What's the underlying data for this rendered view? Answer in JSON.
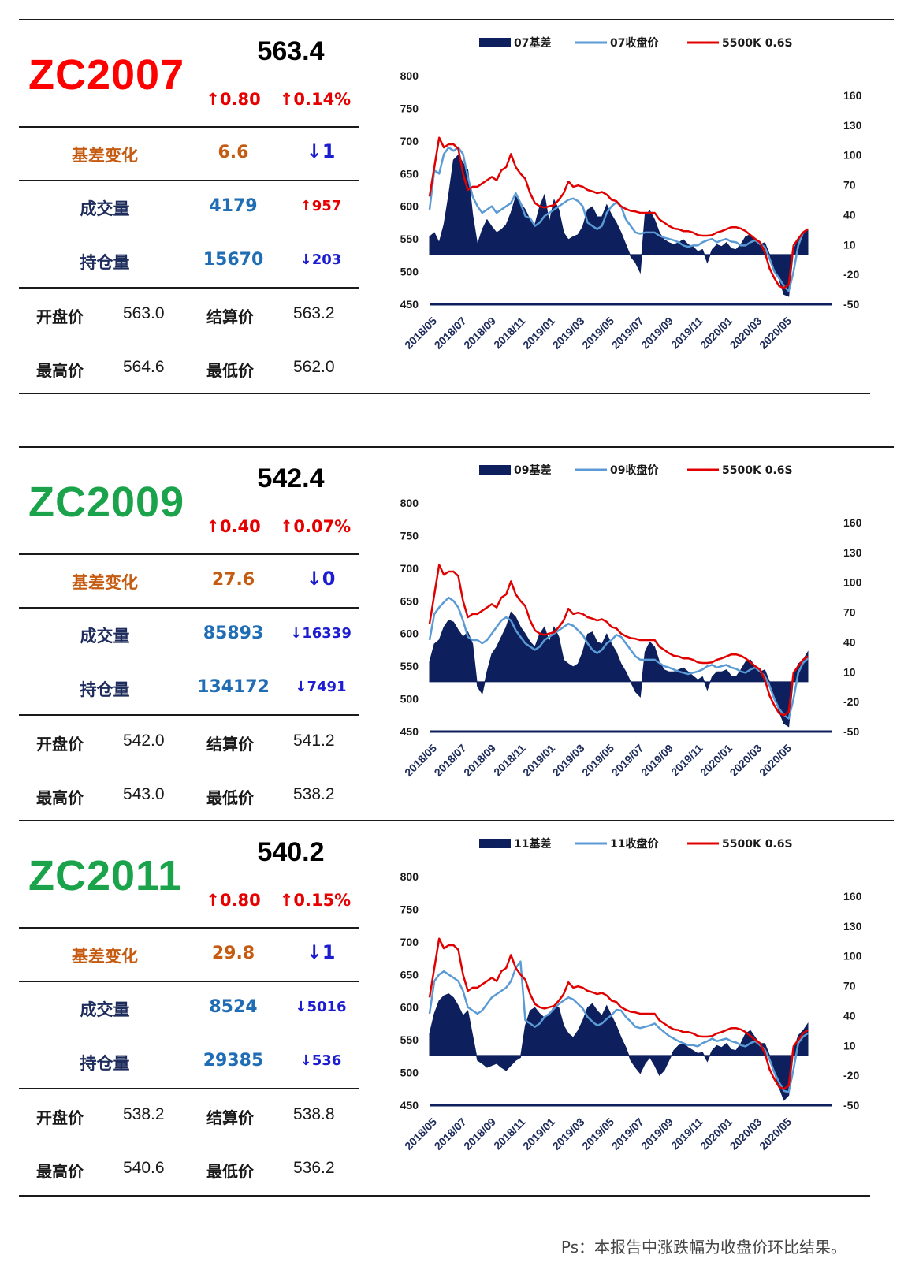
{
  "footer_note": "Ps：本报告中涨跌幅为收盘价环比结果。",
  "panels": [
    {
      "code": "ZC2007",
      "code_color": "#ff0000",
      "price": "563.4",
      "change": "↑0.80",
      "change_pct": "↑0.14%",
      "basis_label": "基差变化",
      "basis_value": "6.6",
      "basis_delta": "↓1",
      "volume_label": "成交量",
      "volume_value": "4179",
      "volume_delta": "↑957",
      "oi_label": "持仓量",
      "oi_value": "15670",
      "oi_delta": "↓203",
      "open_label": "开盘价",
      "open_value": "563.0",
      "settle_label": "结算价",
      "settle_value": "563.2",
      "high_label": "最高价",
      "high_value": "564.6",
      "low_label": "最低价",
      "low_value": "562.0",
      "volume_delta_up": true
    },
    {
      "code": "ZC2009",
      "code_color": "#1aa34a",
      "price": "542.4",
      "change": "↑0.40",
      "change_pct": "↑0.07%",
      "basis_label": "基差变化",
      "basis_value": "27.6",
      "basis_delta": "↓0",
      "volume_label": "成交量",
      "volume_value": "85893",
      "volume_delta": "↓16339",
      "oi_label": "持仓量",
      "oi_value": "134172",
      "oi_delta": "↓7491",
      "open_label": "开盘价",
      "open_value": "542.0",
      "settle_label": "结算价",
      "settle_value": "541.2",
      "high_label": "最高价",
      "high_value": "543.0",
      "low_label": "最低价",
      "low_value": "538.2",
      "volume_delta_up": false
    },
    {
      "code": "ZC2011",
      "code_color": "#1aa34a",
      "price": "540.2",
      "change": "↑0.80",
      "change_pct": "↑0.15%",
      "basis_label": "基差变化",
      "basis_value": "29.8",
      "basis_delta": "↓1",
      "volume_label": "成交量",
      "volume_value": "8524",
      "volume_delta": "↓5016",
      "oi_label": "持仓量",
      "oi_value": "29385",
      "oi_delta": "↓536",
      "open_label": "开盘价",
      "open_value": "538.2",
      "settle_label": "结算价",
      "settle_value": "538.8",
      "high_label": "最高价",
      "high_value": "540.6",
      "low_label": "最低价",
      "low_value": "536.2",
      "volume_delta_up": false
    }
  ],
  "chart_data": [
    {
      "type": "line",
      "legend": [
        "07基差",
        "07收盘价",
        "5500K 0.6S"
      ],
      "legend_placement": "top",
      "x_ticks": [
        "2018/05",
        "2018/07",
        "2018/09",
        "2018/11",
        "2019/01",
        "2019/03",
        "2019/05",
        "2019/07",
        "2019/09",
        "2019/11",
        "2020/01",
        "2020/03",
        "2020/05"
      ],
      "y_left": [
        800,
        750,
        700,
        650,
        600,
        550,
        500,
        450
      ],
      "y_right": [
        160,
        130,
        100,
        70,
        40,
        10,
        -20,
        -50
      ],
      "colors": {
        "basis": "#0d1f5c",
        "close": "#5b9bd5",
        "spot": "#e00000"
      },
      "series": [
        {
          "name": "07基差",
          "axis": "right",
          "values": [
            18,
            22,
            12,
            30,
            60,
            95,
            100,
            92,
            85,
            40,
            10,
            25,
            35,
            28,
            22,
            25,
            30,
            42,
            58,
            52,
            45,
            35,
            30,
            48,
            60,
            32,
            55,
            45,
            22,
            15,
            18,
            20,
            28,
            45,
            48,
            38,
            38,
            50,
            40,
            32,
            22,
            10,
            -2,
            -8,
            -18,
            40,
            44,
            35,
            22,
            15,
            12,
            10,
            12,
            15,
            10,
            8,
            3,
            5,
            -8,
            5,
            10,
            8,
            12,
            6,
            5,
            10,
            18,
            20,
            14,
            10,
            12,
            0,
            -15,
            -25,
            -40,
            -42,
            5,
            15,
            20,
            25
          ]
        },
        {
          "name": "07收盘价",
          "axis": "left",
          "values": [
            595,
            655,
            650,
            680,
            690,
            685,
            690,
            680,
            645,
            615,
            600,
            590,
            595,
            600,
            590,
            595,
            600,
            605,
            620,
            605,
            585,
            582,
            570,
            575,
            585,
            590,
            595,
            600,
            605,
            610,
            612,
            608,
            600,
            575,
            570,
            565,
            570,
            590,
            600,
            606,
            600,
            580,
            570,
            560,
            558,
            560,
            560,
            560,
            555,
            552,
            550,
            548,
            545,
            540,
            538,
            540,
            540,
            545,
            548,
            550,
            545,
            548,
            550,
            546,
            545,
            540,
            540,
            545,
            548,
            542,
            538,
            520,
            500,
            490,
            478,
            470,
            500,
            540,
            560,
            565
          ]
        },
        {
          "name": "5500K 0.6S",
          "axis": "left",
          "values": [
            615,
            660,
            705,
            690,
            695,
            695,
            688,
            650,
            625,
            630,
            630,
            635,
            640,
            645,
            640,
            655,
            660,
            680,
            660,
            650,
            642,
            620,
            605,
            600,
            598,
            600,
            602,
            610,
            620,
            638,
            630,
            632,
            630,
            625,
            623,
            620,
            622,
            618,
            610,
            608,
            600,
            596,
            593,
            592,
            590,
            590,
            590,
            590,
            580,
            575,
            570,
            566,
            565,
            562,
            562,
            560,
            556,
            555,
            555,
            556,
            560,
            562,
            565,
            568,
            568,
            566,
            562,
            556,
            550,
            545,
            530,
            505,
            490,
            478,
            475,
            480,
            540,
            550,
            560,
            565
          ]
        }
      ]
    },
    {
      "type": "line",
      "legend": [
        "09基差",
        "09收盘价",
        "5500K 0.6S"
      ],
      "legend_placement": "top",
      "x_ticks": [
        "2018/05",
        "2018/07",
        "2018/09",
        "2018/11",
        "2019/01",
        "2019/03",
        "2019/05",
        "2019/07",
        "2019/09",
        "2019/11",
        "2020/01",
        "2020/03",
        "2020/05"
      ],
      "y_left": [
        800,
        750,
        700,
        650,
        600,
        550,
        500,
        450
      ],
      "y_right": [
        160,
        130,
        100,
        70,
        40,
        10,
        -20,
        -50
      ],
      "colors": {
        "basis": "#0d1f5c",
        "close": "#5b9bd5",
        "spot": "#e00000"
      },
      "series": [
        {
          "name": "09基差",
          "axis": "right",
          "values": [
            20,
            38,
            42,
            55,
            62,
            60,
            52,
            45,
            50,
            38,
            -5,
            -12,
            10,
            28,
            35,
            45,
            55,
            70,
            65,
            55,
            48,
            40,
            35,
            48,
            55,
            40,
            55,
            45,
            22,
            18,
            15,
            18,
            30,
            48,
            50,
            40,
            38,
            48,
            38,
            30,
            18,
            10,
            0,
            -10,
            -15,
            30,
            40,
            35,
            20,
            12,
            10,
            10,
            12,
            14,
            10,
            6,
            2,
            5,
            -8,
            5,
            10,
            10,
            12,
            6,
            5,
            12,
            20,
            22,
            15,
            10,
            12,
            0,
            -15,
            -30,
            -42,
            -45,
            5,
            18,
            22,
            30
          ]
        },
        {
          "name": "09收盘价",
          "axis": "left",
          "values": [
            590,
            630,
            640,
            648,
            655,
            650,
            640,
            620,
            595,
            590,
            590,
            585,
            590,
            600,
            610,
            620,
            625,
            620,
            605,
            595,
            585,
            580,
            575,
            580,
            590,
            595,
            600,
            605,
            610,
            615,
            612,
            605,
            598,
            585,
            575,
            570,
            575,
            585,
            590,
            598,
            595,
            585,
            575,
            565,
            560,
            560,
            560,
            560,
            555,
            550,
            548,
            545,
            542,
            540,
            538,
            540,
            542,
            545,
            550,
            552,
            548,
            550,
            552,
            548,
            546,
            542,
            540,
            545,
            548,
            542,
            535,
            520,
            500,
            485,
            475,
            470,
            500,
            540,
            555,
            562
          ]
        },
        {
          "name": "5500K 0.6S",
          "axis": "left",
          "values": [
            615,
            660,
            705,
            690,
            695,
            695,
            688,
            650,
            625,
            630,
            630,
            635,
            640,
            645,
            640,
            655,
            660,
            680,
            660,
            650,
            642,
            620,
            605,
            600,
            598,
            600,
            602,
            610,
            620,
            638,
            630,
            632,
            630,
            625,
            623,
            620,
            622,
            618,
            610,
            608,
            600,
            596,
            593,
            592,
            590,
            590,
            590,
            590,
            580,
            575,
            570,
            566,
            565,
            562,
            562,
            560,
            556,
            555,
            555,
            556,
            560,
            562,
            565,
            568,
            568,
            566,
            562,
            556,
            550,
            545,
            530,
            505,
            490,
            478,
            475,
            480,
            540,
            550,
            560,
            565
          ]
        }
      ]
    },
    {
      "type": "line",
      "legend": [
        "11基差",
        "11收盘价",
        "5500K 0.6S"
      ],
      "legend_placement": "top",
      "x_ticks": [
        "2018/05",
        "2018/07",
        "2018/09",
        "2018/11",
        "2019/01",
        "2019/03",
        "2019/05",
        "2019/07",
        "2019/09",
        "2019/11",
        "2020/01",
        "2020/03",
        "2020/05"
      ],
      "y_left": [
        800,
        750,
        700,
        650,
        600,
        550,
        500,
        450
      ],
      "y_right": [
        160,
        130,
        100,
        70,
        40,
        10,
        -20,
        -50
      ],
      "colors": {
        "basis": "#0d1f5c",
        "close": "#5b9bd5",
        "spot": "#e00000"
      },
      "series": [
        {
          "name": "11基差",
          "axis": "right",
          "values": [
            22,
            42,
            55,
            60,
            62,
            58,
            50,
            40,
            45,
            20,
            -5,
            -8,
            -12,
            -10,
            -8,
            -12,
            -15,
            -10,
            -5,
            -2,
            30,
            45,
            48,
            42,
            38,
            40,
            50,
            48,
            30,
            22,
            18,
            25,
            35,
            48,
            52,
            45,
            40,
            50,
            40,
            30,
            18,
            8,
            -5,
            -12,
            -18,
            -8,
            -2,
            -10,
            -20,
            -15,
            -5,
            5,
            10,
            12,
            8,
            5,
            2,
            3,
            -6,
            5,
            10,
            8,
            12,
            6,
            5,
            12,
            22,
            25,
            18,
            12,
            12,
            0,
            -18,
            -32,
            -45,
            -40,
            5,
            20,
            25,
            32
          ]
        },
        {
          "name": "11收盘价",
          "axis": "left",
          "values": [
            590,
            640,
            650,
            655,
            650,
            645,
            640,
            625,
            600,
            595,
            590,
            595,
            605,
            615,
            620,
            625,
            630,
            640,
            660,
            670,
            580,
            575,
            570,
            575,
            585,
            590,
            598,
            605,
            610,
            615,
            612,
            605,
            598,
            585,
            578,
            572,
            575,
            582,
            588,
            596,
            595,
            585,
            578,
            570,
            568,
            570,
            572,
            575,
            568,
            562,
            556,
            552,
            548,
            545,
            542,
            542,
            540,
            545,
            548,
            552,
            548,
            550,
            552,
            548,
            546,
            542,
            540,
            545,
            548,
            542,
            535,
            520,
            500,
            485,
            472,
            470,
            505,
            545,
            555,
            560
          ]
        },
        {
          "name": "5500K 0.6S",
          "axis": "left",
          "values": [
            615,
            660,
            705,
            690,
            695,
            695,
            688,
            650,
            625,
            630,
            630,
            635,
            640,
            645,
            640,
            655,
            660,
            680,
            660,
            650,
            642,
            620,
            605,
            600,
            598,
            600,
            602,
            610,
            620,
            638,
            630,
            632,
            630,
            625,
            623,
            620,
            622,
            618,
            610,
            608,
            600,
            596,
            593,
            592,
            590,
            590,
            590,
            590,
            580,
            575,
            570,
            566,
            565,
            562,
            562,
            560,
            556,
            555,
            555,
            556,
            560,
            562,
            565,
            568,
            568,
            566,
            562,
            556,
            550,
            545,
            530,
            505,
            490,
            478,
            475,
            480,
            540,
            550,
            560,
            565
          ]
        }
      ]
    }
  ]
}
